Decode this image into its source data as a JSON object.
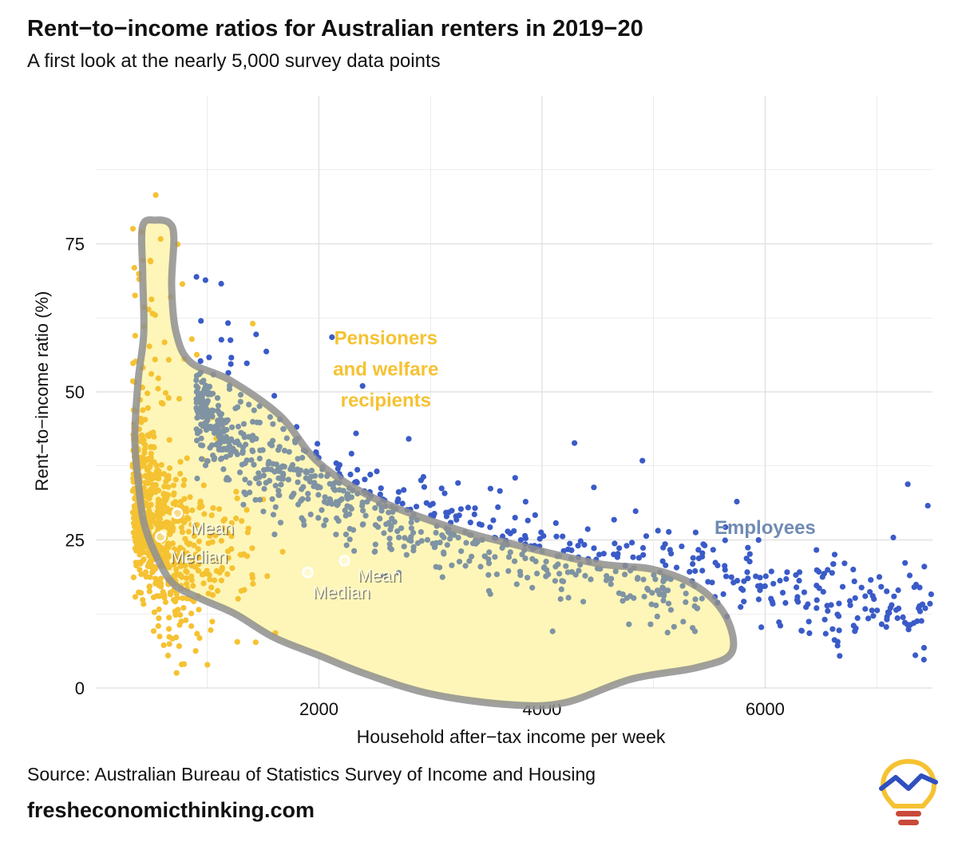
{
  "header": {
    "title": "Rent−to−income ratios for Australian renters in 2019−20",
    "subtitle": "A first look at the nearly 5,000 survey data points"
  },
  "footer": {
    "source": "Source: Australian Bureau of Statistics Survey of Income and Housing",
    "site": "fresheconomicthinking.com"
  },
  "colors": {
    "pensioners": "#f5c232",
    "employees_outside": "#3a5bc7",
    "employees_inside": "#7f93a3",
    "banana_fill": "#fdf6b8",
    "banana_outline": "#8f8f8f",
    "grid": "#dedede",
    "label_employees": "#6f8bb3"
  },
  "chart_data": {
    "type": "scatter",
    "title": "Rent−to−income ratios for Australian renters in 2019−20",
    "xlabel": "Household after−tax income per week",
    "ylabel": "Rent−to−income ratio (%)",
    "xlim": [
      0,
      7500
    ],
    "ylim": [
      0,
      100
    ],
    "xticks": [
      2000,
      4000,
      6000
    ],
    "yticks": [
      0,
      25,
      50,
      75
    ],
    "grid": true,
    "point_count_note": "nearly 5,000 survey data points (sample rendered)",
    "series": [
      {
        "name": "Pensioners and welfare recipients",
        "label_lines": [
          "Pensioners",
          "and welfare",
          "recipients"
        ],
        "label_position": {
          "x": 2600,
          "y": 58
        },
        "typical_income_range": [
          300,
          1600
        ],
        "mean": {
          "x": 730,
          "y": 29.5,
          "label": "Mean"
        },
        "median": {
          "x": 580,
          "y": 25.5,
          "label": "Median"
        }
      },
      {
        "name": "Employees",
        "label_lines": [
          "Employees"
        ],
        "label_position": {
          "x": 6000,
          "y": 26
        },
        "typical_income_range": [
          800,
          7500
        ],
        "mean": {
          "x": 2230,
          "y": 21.5,
          "label": "Mean"
        },
        "median": {
          "x": 1900,
          "y": 19.5,
          "label": "Median"
        }
      }
    ],
    "annotations": [
      {
        "text": "Mean",
        "series": "Pensioners and welfare recipients"
      },
      {
        "text": "Median",
        "series": "Pensioners and welfare recipients"
      },
      {
        "text": "Mean",
        "series": "Employees"
      },
      {
        "text": "Median",
        "series": "Employees"
      }
    ],
    "banana_outline": [
      [
        420,
        78
      ],
      [
        540,
        79
      ],
      [
        660,
        78.5
      ],
      [
        700,
        76
      ],
      [
        680,
        68
      ],
      [
        720,
        60
      ],
      [
        850,
        55
      ],
      [
        1200,
        52
      ],
      [
        1650,
        46
      ],
      [
        2000,
        38
      ],
      [
        2500,
        32
      ],
      [
        3200,
        27
      ],
      [
        3800,
        24
      ],
      [
        4500,
        21
      ],
      [
        5000,
        20
      ],
      [
        5400,
        17
      ],
      [
        5650,
        12
      ],
      [
        5700,
        6
      ],
      [
        5400,
        3.5
      ],
      [
        4800,
        1.5
      ],
      [
        4200,
        -2.5
      ],
      [
        3700,
        -2.8
      ],
      [
        3000,
        -1
      ],
      [
        2400,
        2.5
      ],
      [
        2000,
        5.5
      ],
      [
        1600,
        8.5
      ],
      [
        1250,
        12.5
      ],
      [
        950,
        15
      ],
      [
        700,
        17.5
      ],
      [
        550,
        22
      ],
      [
        430,
        28
      ],
      [
        380,
        35
      ],
      [
        350,
        42
      ],
      [
        380,
        52
      ],
      [
        430,
        60
      ],
      [
        420,
        70
      ]
    ]
  }
}
